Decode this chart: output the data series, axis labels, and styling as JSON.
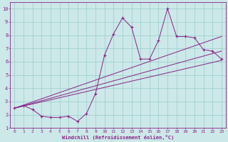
{
  "xlabel": "Windchill (Refroidissement éolien,°C)",
  "bg_color": "#cce8e8",
  "grid_color": "#99cccc",
  "line_color": "#882288",
  "xlim": [
    -0.5,
    23.5
  ],
  "ylim": [
    1,
    10.5
  ],
  "xticks": [
    0,
    1,
    2,
    3,
    4,
    5,
    6,
    7,
    8,
    9,
    10,
    11,
    12,
    13,
    14,
    15,
    16,
    17,
    18,
    19,
    20,
    21,
    22,
    23
  ],
  "yticks": [
    1,
    2,
    3,
    4,
    5,
    6,
    7,
    8,
    9,
    10
  ],
  "scatter_x": [
    0,
    1,
    2,
    3,
    4,
    5,
    6,
    7,
    8,
    9,
    10,
    11,
    12,
    13,
    14,
    15,
    16,
    17,
    18,
    19,
    20,
    21,
    22,
    23
  ],
  "scatter_y": [
    2.5,
    2.7,
    2.4,
    1.9,
    1.8,
    1.8,
    1.9,
    1.5,
    2.1,
    3.6,
    6.5,
    8.1,
    9.3,
    8.6,
    6.2,
    6.2,
    7.6,
    10.0,
    7.9,
    7.9,
    7.8,
    6.9,
    6.8,
    6.2
  ],
  "line1_x": [
    0,
    23
  ],
  "line1_y": [
    2.5,
    6.1
  ],
  "line2_x": [
    0,
    23
  ],
  "line2_y": [
    2.5,
    7.9
  ],
  "line3_x": [
    0,
    23
  ],
  "line3_y": [
    2.5,
    6.8
  ]
}
